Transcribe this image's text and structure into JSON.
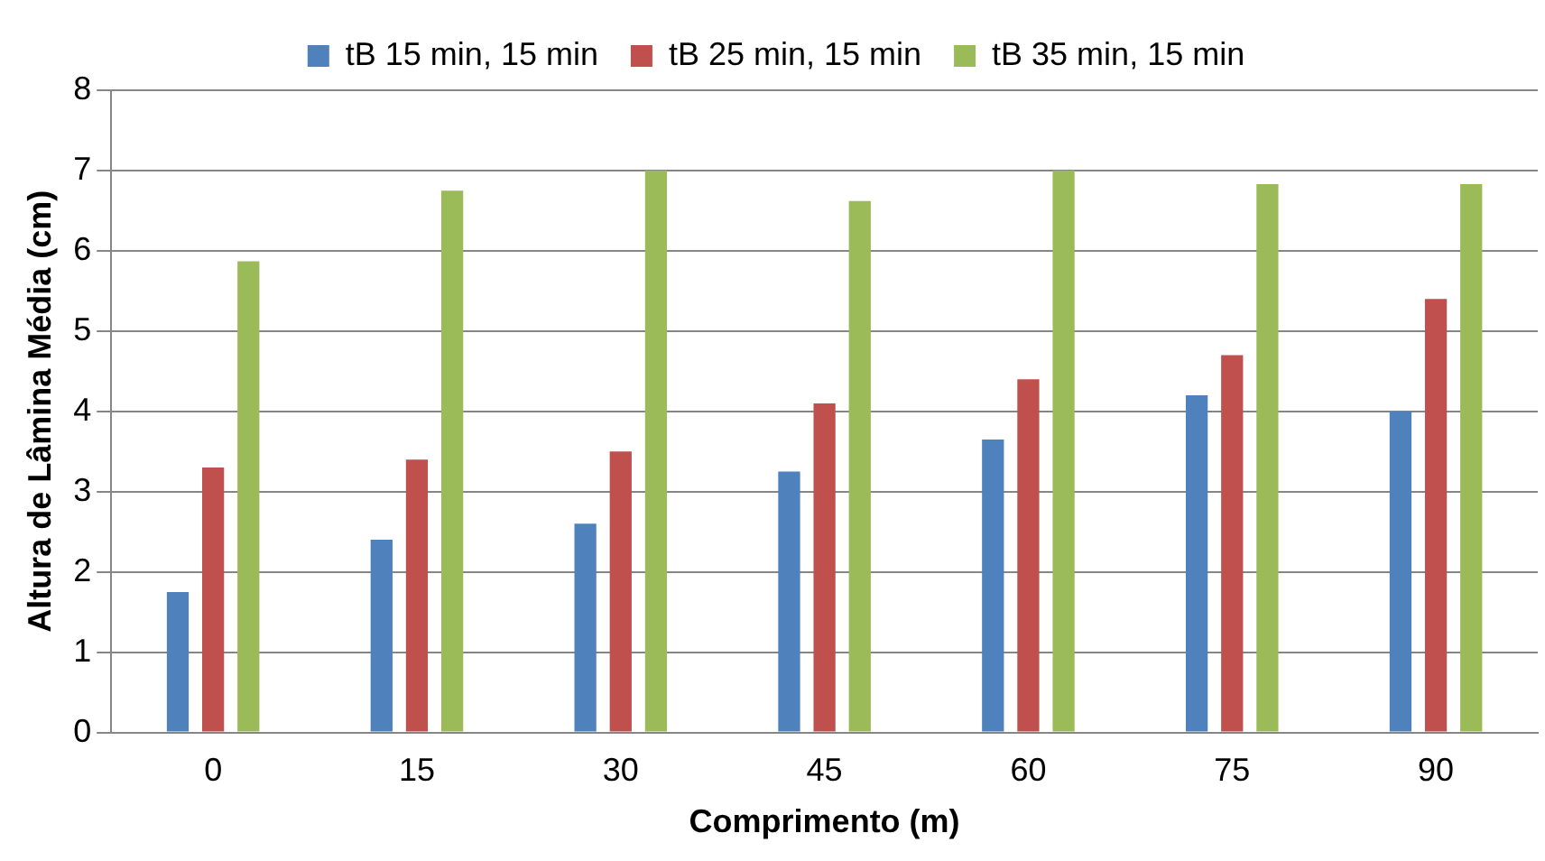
{
  "chart_data": {
    "type": "bar",
    "xlabel": "Comprimento (m)",
    "ylabel": "Altura de Lâmina Média (cm)",
    "categories": [
      "0",
      "15",
      "30",
      "45",
      "60",
      "75",
      "90"
    ],
    "series": [
      {
        "name": "tB 15 min, 15 min",
        "color": "#4f81bd",
        "values": [
          1.75,
          2.4,
          2.6,
          3.25,
          3.65,
          4.2,
          4.0
        ]
      },
      {
        "name": "tB 25 min, 15 min",
        "color": "#c0504d",
        "values": [
          3.3,
          3.4,
          3.5,
          4.1,
          4.4,
          4.7,
          5.4
        ]
      },
      {
        "name": "tB 35 min, 15 min",
        "color": "#9bbb59",
        "values": [
          5.87,
          6.75,
          7.0,
          6.62,
          7.0,
          6.83,
          6.83
        ]
      }
    ],
    "ylim": [
      0,
      8
    ],
    "yticks": [
      0,
      1,
      2,
      3,
      4,
      5,
      6,
      7,
      8
    ],
    "grid": "y",
    "legend": "top"
  }
}
